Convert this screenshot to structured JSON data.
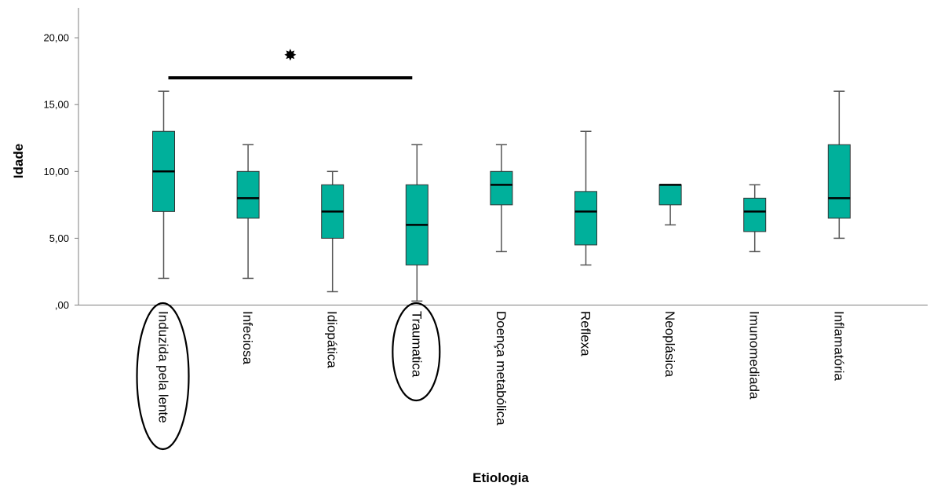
{
  "chart_data": {
    "type": "boxplot",
    "xlabel": "Etiologia",
    "ylabel": "Idade",
    "ylim": [
      0,
      22
    ],
    "yticks": [
      {
        "value": 0,
        "label": ",00"
      },
      {
        "value": 5,
        "label": "5,00"
      },
      {
        "value": 10,
        "label": "10,00"
      },
      {
        "value": 15,
        "label": "15,00"
      },
      {
        "value": 20,
        "label": "20,00"
      }
    ],
    "categories": [
      "Induzida pela lente",
      "Infeciosa",
      "Idiopática",
      "Traumatica",
      "Doença metabólica",
      "Reflexa",
      "Neoplásica",
      "Imunomediada",
      "Inflamatória"
    ],
    "boxes": [
      {
        "min": 2,
        "q1": 7,
        "median": 10,
        "q3": 13,
        "max": 16
      },
      {
        "min": 2,
        "q1": 6.5,
        "median": 8,
        "q3": 10,
        "max": 12
      },
      {
        "min": 1,
        "q1": 5,
        "median": 7,
        "q3": 9,
        "max": 10
      },
      {
        "min": 0.3,
        "q1": 3,
        "median": 6,
        "q3": 9,
        "max": 12
      },
      {
        "min": 4,
        "q1": 7.5,
        "median": 9,
        "q3": 10,
        "max": 12
      },
      {
        "min": 3,
        "q1": 4.5,
        "median": 7,
        "q3": 8.5,
        "max": 13
      },
      {
        "min": 6,
        "q1": 7.5,
        "median": 9,
        "q3": 9,
        "max": 9
      },
      {
        "min": 4,
        "q1": 5.5,
        "median": 7,
        "q3": 8,
        "max": 9
      },
      {
        "min": 5,
        "q1": 6.5,
        "median": 8,
        "q3": 12,
        "max": 16
      }
    ],
    "box_color": "#00b09b",
    "significance": {
      "from": "Induzida pela lente",
      "to": "Traumatica",
      "level": 17,
      "marker": "✸"
    },
    "highlighted_categories": [
      "Induzida pela lente",
      "Traumatica"
    ]
  }
}
